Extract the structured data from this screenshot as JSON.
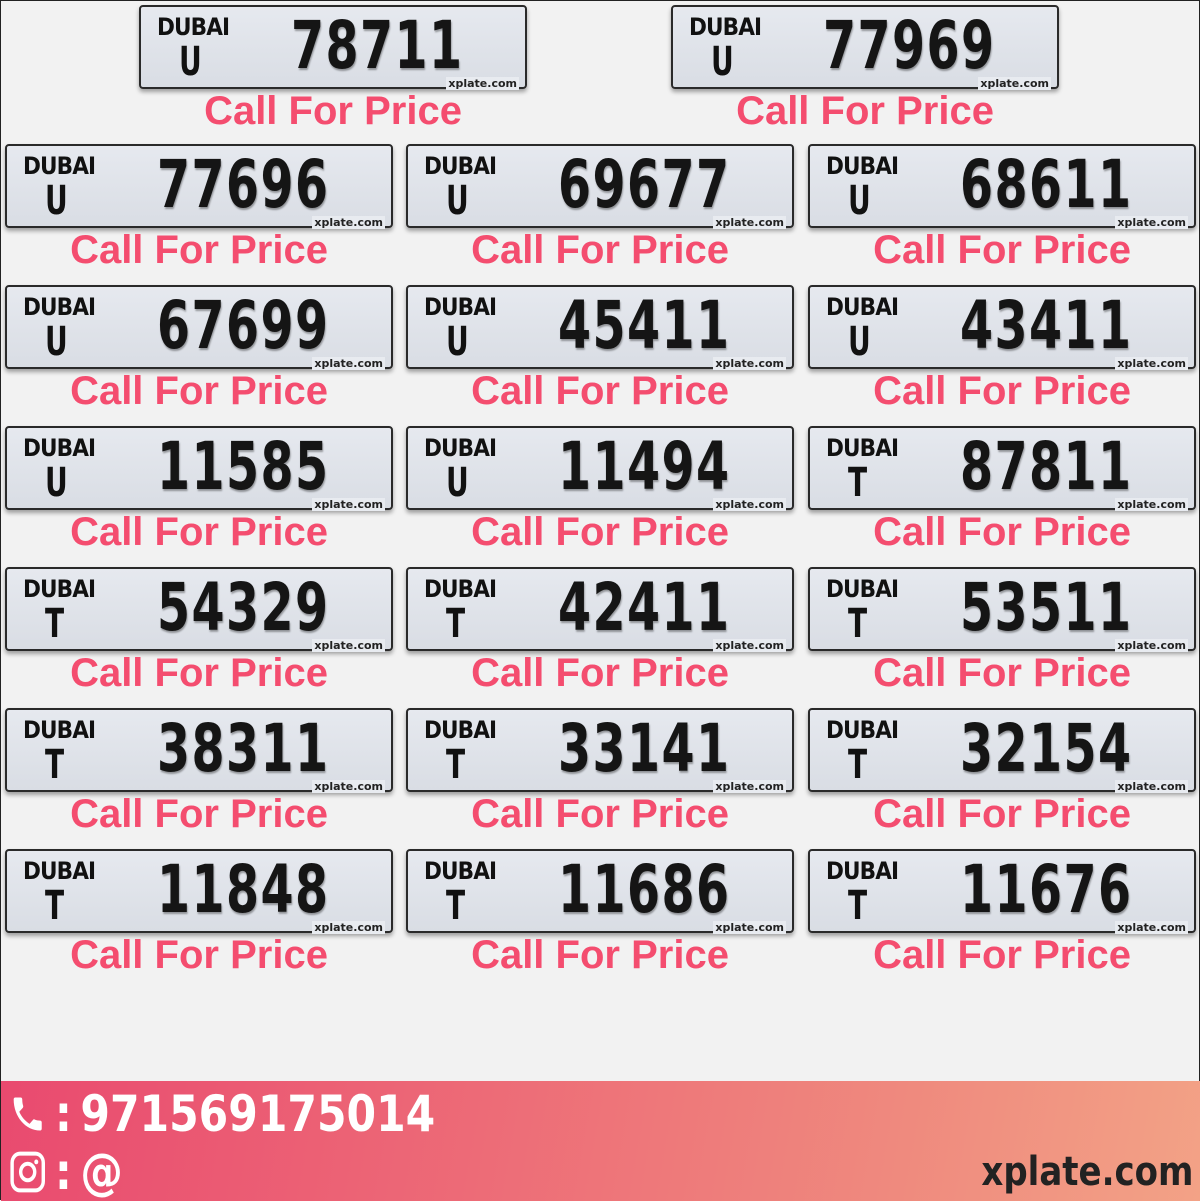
{
  "plates": [
    {
      "emirate": "DUBAI",
      "code": "U",
      "number": "78711",
      "price": "Call For Price"
    },
    {
      "emirate": "DUBAI",
      "code": "U",
      "number": "77969",
      "price": "Call For Price"
    },
    {
      "emirate": "DUBAI",
      "code": "U",
      "number": "77696",
      "price": "Call For Price"
    },
    {
      "emirate": "DUBAI",
      "code": "U",
      "number": "69677",
      "price": "Call For Price"
    },
    {
      "emirate": "DUBAI",
      "code": "U",
      "number": "68611",
      "price": "Call For Price"
    },
    {
      "emirate": "DUBAI",
      "code": "U",
      "number": "67699",
      "price": "Call For Price"
    },
    {
      "emirate": "DUBAI",
      "code": "U",
      "number": "45411",
      "price": "Call For Price"
    },
    {
      "emirate": "DUBAI",
      "code": "U",
      "number": "43411",
      "price": "Call For Price"
    },
    {
      "emirate": "DUBAI",
      "code": "U",
      "number": "11585",
      "price": "Call For Price"
    },
    {
      "emirate": "DUBAI",
      "code": "U",
      "number": "11494",
      "price": "Call For Price"
    },
    {
      "emirate": "DUBAI",
      "code": "T",
      "number": "87811",
      "price": "Call For Price"
    },
    {
      "emirate": "DUBAI",
      "code": "T",
      "number": "54329",
      "price": "Call For Price"
    },
    {
      "emirate": "DUBAI",
      "code": "T",
      "number": "42411",
      "price": "Call For Price"
    },
    {
      "emirate": "DUBAI",
      "code": "T",
      "number": "53511",
      "price": "Call For Price"
    },
    {
      "emirate": "DUBAI",
      "code": "T",
      "number": "38311",
      "price": "Call For Price"
    },
    {
      "emirate": "DUBAI",
      "code": "T",
      "number": "33141",
      "price": "Call For Price"
    },
    {
      "emirate": "DUBAI",
      "code": "T",
      "number": "32154",
      "price": "Call For Price"
    },
    {
      "emirate": "DUBAI",
      "code": "T",
      "number": "11848",
      "price": "Call For Price"
    },
    {
      "emirate": "DUBAI",
      "code": "T",
      "number": "11686",
      "price": "Call For Price"
    },
    {
      "emirate": "DUBAI",
      "code": "T",
      "number": "11676",
      "price": "Call For Price"
    }
  ],
  "plate_watermark": "xplate.com",
  "footer": {
    "phone_sep": ":",
    "phone": "971569175014",
    "instagram_sep": ":",
    "instagram": "@",
    "brand": "xplate.com",
    "phone_icon": "phone-icon",
    "instagram_icon": "instagram-icon"
  },
  "colors": {
    "price": "#f44d6f",
    "footer_start": "#e94a6f",
    "footer_end": "#f3a286"
  }
}
